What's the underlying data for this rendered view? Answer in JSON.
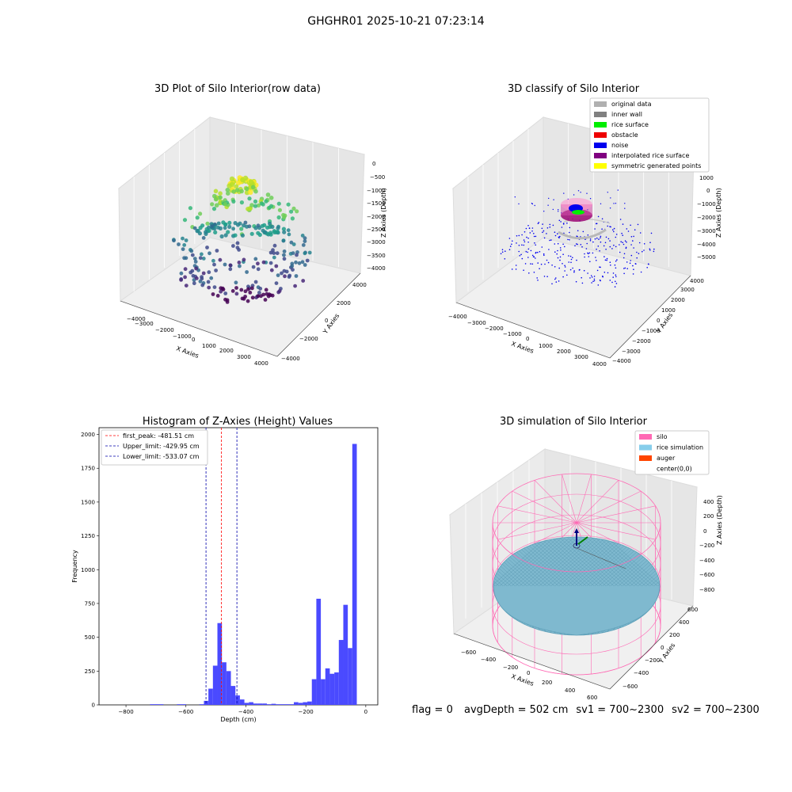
{
  "suptitle": "GHGHR01 2025-10-21 07:23:14",
  "footer": {
    "flag": "flag = 0",
    "avg_depth": "avgDepth = 502 cm",
    "sv1": "sv1 = 700~2300",
    "sv2": "sv2 = 700~2300"
  },
  "chart_data": [
    {
      "type": "scatter",
      "title": "3D Plot of Silo Interior(row data)",
      "xlabel": "X Axies",
      "ylabel": "Y Axies",
      "zlabel": "Z Axies (Depth)",
      "xticks": [
        "−4000",
        "−3000",
        "−2000",
        "−1000",
        "0",
        "1000",
        "2000",
        "3000",
        "4000"
      ],
      "yticks": [
        "−4000",
        "−2000",
        "0",
        "2000",
        "4000"
      ],
      "zticks": [
        "0",
        "−500",
        "−1000",
        "−1500",
        "−2000",
        "−2500",
        "−3000",
        "−3500",
        "−4000"
      ],
      "colormap": "viridis",
      "grid": true
    },
    {
      "type": "scatter",
      "title": "3D classify of Silo Interior",
      "xlabel": "X Axies",
      "ylabel": "Y Axies",
      "zlabel": "Z Axies (Depth)",
      "xticks": [
        "−4000",
        "−3000",
        "−2000",
        "−1000",
        "0",
        "1000",
        "2000",
        "3000",
        "4000"
      ],
      "yticks": [
        "−4000",
        "−3000",
        "−2000",
        "−1000",
        "0",
        "1000",
        "2000",
        "3000",
        "4000"
      ],
      "zticks": [
        "1000",
        "0",
        "−1000",
        "−2000",
        "−3000",
        "−4000",
        "−5000"
      ],
      "legend_position": "top-right",
      "legend": [
        {
          "label": "original data",
          "color": "#b0b0b0"
        },
        {
          "label": "inner wall",
          "color": "#808080"
        },
        {
          "label": "rice surface",
          "color": "#00ee00"
        },
        {
          "label": "obstacle",
          "color": "#ee0000"
        },
        {
          "label": "noise",
          "color": "#0000ee"
        },
        {
          "label": "interpolated rice surface",
          "color": "#800080"
        },
        {
          "label": "symmetric generated points",
          "color": "#ffff00"
        }
      ],
      "grid": true
    },
    {
      "type": "bar",
      "title": "Histogram of Z-Axies (Height) Values",
      "xlabel": "Depth (cm)",
      "ylabel": "Frequency",
      "xlim": [
        -890,
        40
      ],
      "ylim": [
        0,
        2050
      ],
      "xticks": [
        -800,
        -600,
        -400,
        -200,
        0
      ],
      "yticks": [
        0,
        250,
        500,
        750,
        1000,
        1250,
        1500,
        1750,
        2000
      ],
      "bin_width": 15,
      "bar_color": "#4a4aff",
      "bins": [
        {
          "x": -720,
          "v": 5
        },
        {
          "x": -705,
          "v": 5
        },
        {
          "x": -690,
          "v": 5
        },
        {
          "x": -630,
          "v": 5
        },
        {
          "x": -615,
          "v": 5
        },
        {
          "x": -555,
          "v": 5
        },
        {
          "x": -540,
          "v": 30
        },
        {
          "x": -525,
          "v": 120
        },
        {
          "x": -510,
          "v": 290
        },
        {
          "x": -495,
          "v": 605
        },
        {
          "x": -480,
          "v": 315
        },
        {
          "x": -465,
          "v": 250
        },
        {
          "x": -450,
          "v": 140
        },
        {
          "x": -435,
          "v": 70
        },
        {
          "x": -420,
          "v": 40
        },
        {
          "x": -405,
          "v": 15
        },
        {
          "x": -390,
          "v": 20
        },
        {
          "x": -375,
          "v": 10
        },
        {
          "x": -360,
          "v": 10
        },
        {
          "x": -345,
          "v": 10
        },
        {
          "x": -330,
          "v": 5
        },
        {
          "x": -315,
          "v": 8
        },
        {
          "x": -300,
          "v": 5
        },
        {
          "x": -285,
          "v": 5
        },
        {
          "x": -270,
          "v": 5
        },
        {
          "x": -255,
          "v": 5
        },
        {
          "x": -240,
          "v": 20
        },
        {
          "x": -225,
          "v": 15
        },
        {
          "x": -210,
          "v": 20
        },
        {
          "x": -195,
          "v": 25
        },
        {
          "x": -180,
          "v": 190
        },
        {
          "x": -165,
          "v": 785
        },
        {
          "x": -150,
          "v": 190
        },
        {
          "x": -135,
          "v": 270
        },
        {
          "x": -120,
          "v": 230
        },
        {
          "x": -105,
          "v": 240
        },
        {
          "x": -90,
          "v": 480
        },
        {
          "x": -75,
          "v": 740
        },
        {
          "x": -60,
          "v": 420
        },
        {
          "x": -45,
          "v": 1930
        }
      ],
      "vlines": [
        {
          "label": "first_peak: -481.51 cm",
          "x": -481.51,
          "color": "#ff0000"
        },
        {
          "label": "Upper_limit: -429.95 cm",
          "x": -429.95,
          "color": "#0000aa"
        },
        {
          "label": "Lower_limit: -533.07 cm",
          "x": -533.07,
          "color": "#0000aa"
        }
      ],
      "legend_position": "top-left"
    },
    {
      "type": "area",
      "title": "3D simulation of Silo Interior",
      "xlabel": "X Axies",
      "ylabel": "Y Axies",
      "zlabel": "Z Axies (Depth)",
      "xticks": [
        "−600",
        "−400",
        "−200",
        "0",
        "200",
        "400",
        "600"
      ],
      "yticks": [
        "−600",
        "−400",
        "−200",
        "0",
        "200",
        "400",
        "600"
      ],
      "zticks": [
        "400",
        "200",
        "0",
        "−200",
        "−400",
        "−600",
        "−800"
      ],
      "legend_position": "top-right",
      "legend": [
        {
          "label": "silo",
          "color": "#ff69b4"
        },
        {
          "label": "rice simulation",
          "color": "#87ceeb"
        },
        {
          "label": "auger",
          "color": "#ff4500"
        },
        {
          "label": "center(0,0)",
          "color": ""
        }
      ],
      "grid": true
    }
  ]
}
